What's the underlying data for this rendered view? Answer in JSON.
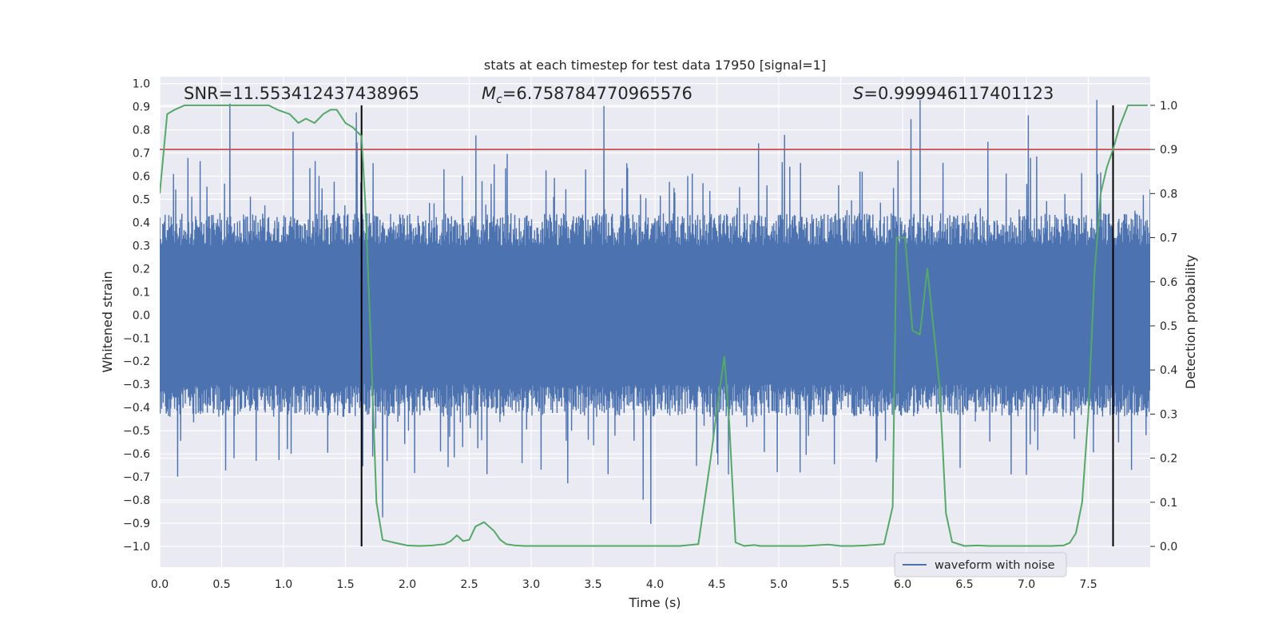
{
  "chart_data": {
    "type": "line",
    "title": "stats at each timestep for test data 17950 [signal=1]",
    "xlabel": "Time (s)",
    "ylabel_left": "Whitened strain",
    "ylabel_right": "Detection probability",
    "xlim": [
      0.0,
      8.0
    ],
    "ylim_left": [
      -1.09,
      1.03
    ],
    "ylim_right": [
      -0.047,
      1.065
    ],
    "x_ticks": [
      "0.0",
      "0.5",
      "1.0",
      "1.5",
      "2.0",
      "2.5",
      "3.0",
      "3.5",
      "4.0",
      "4.5",
      "5.0",
      "5.5",
      "6.0",
      "6.5",
      "7.0",
      "7.5"
    ],
    "y_left_ticks": [
      "1.0",
      "0.9",
      "0.8",
      "0.7",
      "0.6",
      "0.5",
      "0.4",
      "0.3",
      "0.2",
      "0.1",
      "0.0",
      "−0.1",
      "−0.2",
      "−0.3",
      "−0.4",
      "−0.5",
      "−0.6",
      "−0.7",
      "−0.8",
      "−0.9",
      "−1.0"
    ],
    "y_right_ticks": [
      "1.0",
      "0.9",
      "0.8",
      "0.7",
      "0.6",
      "0.5",
      "0.4",
      "0.3",
      "0.2",
      "0.1",
      "0.0"
    ],
    "grid": true,
    "annotations": {
      "snr": "SNR=11.553412437438965",
      "mc_symbol": "M",
      "mc_sub": "c",
      "mc_value": "=6.758784770965576",
      "s_symbol": "S",
      "s_value": "=0.999946117401123"
    },
    "vlines_x": [
      1.63,
      7.7
    ],
    "threshold_right": 0.9,
    "legend": {
      "entries": [
        "waveform with noise"
      ],
      "position": "lower-right"
    },
    "waveform": {
      "name": "waveform with noise",
      "color": "#4c72b0",
      "x_range": [
        0.0,
        8.0
      ],
      "noise_band": [
        -0.4,
        0.4
      ],
      "peak_max": 0.93,
      "peak_min": -1.0
    },
    "detection_probability": {
      "name": "detection probability",
      "color": "#55a868",
      "x": [
        0.0,
        0.06,
        0.12,
        0.2,
        0.3,
        0.4,
        0.5,
        0.6,
        0.7,
        0.8,
        0.88,
        0.95,
        1.05,
        1.12,
        1.18,
        1.25,
        1.32,
        1.38,
        1.43,
        1.5,
        1.56,
        1.63,
        1.66,
        1.7,
        1.75,
        1.8,
        1.9,
        2.0,
        2.1,
        2.2,
        2.3,
        2.35,
        2.4,
        2.45,
        2.5,
        2.55,
        2.62,
        2.7,
        2.75,
        2.8,
        2.87,
        2.95,
        3.0,
        3.1,
        3.3,
        3.5,
        3.8,
        4.0,
        4.2,
        4.35,
        4.45,
        4.5,
        4.56,
        4.6,
        4.65,
        4.72,
        4.8,
        4.85,
        4.9,
        5.0,
        5.2,
        5.4,
        5.5,
        5.6,
        5.7,
        5.85,
        5.92,
        5.95,
        6.02,
        6.08,
        6.14,
        6.2,
        6.3,
        6.35,
        6.4,
        6.5,
        6.6,
        6.7,
        6.8,
        7.0,
        7.2,
        7.3,
        7.35,
        7.4,
        7.45,
        7.5,
        7.55,
        7.6,
        7.65,
        7.7,
        7.75,
        7.82,
        7.88,
        7.95,
        7.98
      ],
      "values": [
        0.8,
        0.98,
        0.99,
        1.0,
        1.0,
        1.0,
        1.0,
        1.0,
        1.0,
        1.0,
        1.0,
        0.99,
        0.98,
        0.96,
        0.97,
        0.96,
        0.98,
        0.99,
        0.99,
        0.96,
        0.95,
        0.93,
        0.78,
        0.5,
        0.1,
        0.015,
        0.008,
        0.002,
        0.001,
        0.002,
        0.005,
        0.012,
        0.025,
        0.012,
        0.015,
        0.045,
        0.055,
        0.035,
        0.015,
        0.005,
        0.002,
        0.001,
        0.001,
        0.001,
        0.001,
        0.001,
        0.001,
        0.001,
        0.001,
        0.005,
        0.2,
        0.31,
        0.43,
        0.28,
        0.009,
        0.001,
        0.003,
        0.001,
        0.001,
        0.001,
        0.001,
        0.004,
        0.001,
        0.001,
        0.002,
        0.005,
        0.09,
        0.7,
        0.7,
        0.49,
        0.48,
        0.63,
        0.36,
        0.075,
        0.01,
        0.001,
        0.002,
        0.001,
        0.001,
        0.001,
        0.001,
        0.002,
        0.008,
        0.03,
        0.1,
        0.3,
        0.62,
        0.8,
        0.86,
        0.9,
        0.95,
        1.0,
        1.0,
        1.0,
        1.0
      ]
    },
    "threshold_color": "#c44e52",
    "vline_color": "#000000",
    "background_color": "#eaeaf2"
  }
}
